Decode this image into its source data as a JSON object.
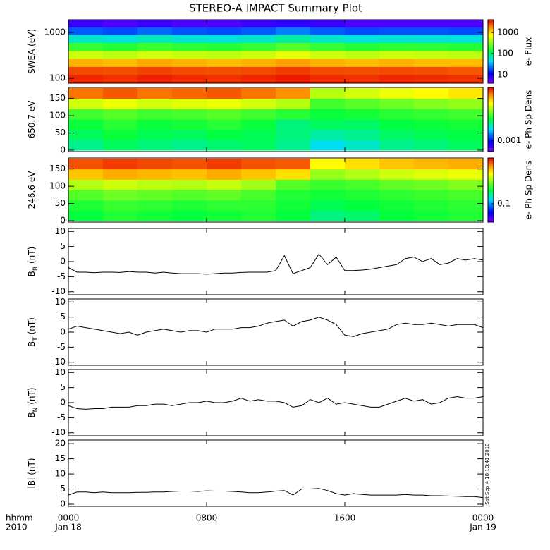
{
  "title": "STEREO-A IMPACT Summary Plot",
  "timestamp": "Sat Sep  4 18:18:41 2010",
  "x_axis": {
    "label": "hhmm",
    "label2": "2010",
    "xlim": [
      0,
      24
    ],
    "xticks": [
      {
        "value": 0,
        "label": "0000"
      },
      {
        "value": 8,
        "label": "0800"
      },
      {
        "value": 16,
        "label": "1600"
      },
      {
        "value": 24,
        "label": "0000"
      }
    ],
    "dates": [
      "Jan 18",
      null,
      null,
      "Jan 19"
    ],
    "time_bins": [
      0,
      2,
      4,
      6,
      8,
      10,
      12,
      14,
      16,
      18,
      20,
      22,
      24
    ],
    "x": [
      0,
      0.5,
      1,
      1.5,
      2,
      2.5,
      3,
      3.5,
      4,
      4.5,
      5,
      5.5,
      6,
      6.5,
      7,
      7.5,
      8,
      8.5,
      9,
      9.5,
      10,
      10.5,
      11,
      11.5,
      12,
      12.5,
      13,
      13.5,
      14,
      14.5,
      15,
      15.5,
      16,
      16.5,
      17,
      17.5,
      18,
      18.5,
      19,
      19.5,
      20,
      20.5,
      21,
      21.5,
      22,
      22.5,
      23,
      23.5,
      24
    ]
  },
  "chart_data": [
    {
      "type": "heatmap",
      "ylabel": "SWEA (eV)",
      "ylog": true,
      "ylim": [
        78,
        1890
      ],
      "yticks": [
        100,
        1000
      ],
      "bins": [
        78,
        120,
        180,
        270,
        400,
        600,
        900,
        1300,
        1890
      ],
      "colorbar": {
        "label": "e- Flux",
        "log": true,
        "clim": [
          4,
          4000
        ],
        "ticks": [
          10,
          100,
          1000
        ]
      },
      "values": [
        [
          3200,
          3000,
          3300,
          3100,
          3000,
          3200,
          3400,
          3100,
          3000,
          3200,
          3100,
          3000
        ],
        [
          2600,
          2500,
          2700,
          2600,
          2500,
          2600,
          2800,
          2600,
          2500,
          2600,
          2500,
          2400
        ],
        [
          1300,
          1200,
          1400,
          1300,
          1200,
          1300,
          1500,
          1300,
          1200,
          1300,
          1200,
          1200
        ],
        [
          500,
          450,
          520,
          480,
          450,
          500,
          600,
          500,
          450,
          500,
          480,
          450
        ],
        [
          180,
          160,
          190,
          170,
          160,
          180,
          220,
          180,
          160,
          170,
          170,
          160
        ],
        [
          60,
          55,
          65,
          58,
          55,
          60,
          75,
          60,
          55,
          58,
          56,
          55
        ],
        [
          20,
          18,
          22,
          19,
          18,
          20,
          25,
          20,
          18,
          19,
          19,
          18
        ],
        [
          7,
          6,
          7,
          6,
          6,
          7,
          8,
          7,
          6,
          6,
          6,
          6
        ]
      ]
    },
    {
      "type": "heatmap",
      "ylabel": "650.7 eV",
      "ylim": [
        -4,
        182
      ],
      "yticks": [
        0,
        50,
        100,
        150
      ],
      "bins": [
        0,
        30,
        60,
        90,
        120,
        150,
        180
      ],
      "colorbar": {
        "label": "e- Ph Sp Dens",
        "log": true,
        "clim": [
          0.0005,
          0.03
        ],
        "ticks": [
          0.001
        ]
      },
      "values": [
        [
          0.003,
          0.0035,
          0.0032,
          0.003,
          0.0033,
          0.0035,
          0.003,
          0.0022,
          0.0025,
          0.003,
          0.0032,
          0.0035
        ],
        [
          0.0035,
          0.004,
          0.0036,
          0.0035,
          0.0038,
          0.0036,
          0.0032,
          0.0028,
          0.003,
          0.0034,
          0.0036,
          0.0038
        ],
        [
          0.004,
          0.0045,
          0.004,
          0.0042,
          0.0045,
          0.004,
          0.0032,
          0.0035,
          0.0034,
          0.0038,
          0.004,
          0.0042
        ],
        [
          0.005,
          0.0055,
          0.005,
          0.0052,
          0.0055,
          0.005,
          0.0045,
          0.004,
          0.0042,
          0.0045,
          0.0048,
          0.005
        ],
        [
          0.009,
          0.01,
          0.009,
          0.0095,
          0.01,
          0.009,
          0.008,
          0.005,
          0.0055,
          0.006,
          0.0065,
          0.007
        ],
        [
          0.02,
          0.022,
          0.02,
          0.021,
          0.022,
          0.02,
          0.018,
          0.008,
          0.009,
          0.01,
          0.011,
          0.012
        ]
      ]
    },
    {
      "type": "heatmap",
      "ylabel": "246.6 eV",
      "ylim": [
        -4,
        182
      ],
      "yticks": [
        0,
        50,
        100,
        150
      ],
      "bins": [
        0,
        30,
        60,
        90,
        120,
        150,
        180
      ],
      "colorbar": {
        "label": "e- Ph Sp Dens",
        "log": true,
        "clim": [
          0.04,
          1
        ],
        "ticks": [
          0.1
        ]
      },
      "values": [
        [
          0.2,
          0.22,
          0.21,
          0.2,
          0.21,
          0.22,
          0.2,
          0.17,
          0.18,
          0.2,
          0.21,
          0.22
        ],
        [
          0.22,
          0.24,
          0.23,
          0.22,
          0.23,
          0.23,
          0.21,
          0.19,
          0.2,
          0.21,
          0.22,
          0.23
        ],
        [
          0.26,
          0.28,
          0.27,
          0.26,
          0.27,
          0.25,
          0.22,
          0.21,
          0.22,
          0.23,
          0.24,
          0.25
        ],
        [
          0.35,
          0.38,
          0.36,
          0.35,
          0.37,
          0.33,
          0.26,
          0.24,
          0.25,
          0.27,
          0.28,
          0.3
        ],
        [
          0.55,
          0.6,
          0.58,
          0.56,
          0.6,
          0.55,
          0.5,
          0.32,
          0.35,
          0.38,
          0.4,
          0.42
        ],
        [
          0.8,
          0.85,
          0.82,
          0.8,
          0.85,
          0.8,
          0.78,
          0.45,
          0.5,
          0.55,
          0.58,
          0.6
        ]
      ]
    },
    {
      "type": "line",
      "ylabel": "B",
      "ylabel_sub": "R",
      "ylabel_unit": "(nT)",
      "ylim": [
        -11,
        11
      ],
      "yticks": [
        -10,
        -5,
        0,
        5,
        10
      ],
      "color": "#000000",
      "values": [
        -2,
        -3.5,
        -3.5,
        -3.7,
        -3.5,
        -3.5,
        -3.6,
        -3.3,
        -3.5,
        -3.5,
        -3.8,
        -3.5,
        -3.8,
        -4,
        -4,
        -4,
        -4.2,
        -4,
        -3.8,
        -3.8,
        -3.6,
        -3.5,
        -3.5,
        -3.5,
        -3,
        2,
        -4,
        -3,
        -2,
        2.5,
        -1,
        1.5,
        -3,
        -3,
        -2.8,
        -2.5,
        -2,
        -1.5,
        -1,
        1,
        1.5,
        0,
        1,
        -1,
        -0.5,
        1,
        0.5,
        1,
        0.5
      ]
    },
    {
      "type": "line",
      "ylabel": "B",
      "ylabel_sub": "T",
      "ylabel_unit": "(nT)",
      "ylim": [
        -11,
        11
      ],
      "yticks": [
        -10,
        -5,
        0,
        5,
        10
      ],
      "color": "#000000",
      "values": [
        1,
        2,
        1.5,
        1,
        0.5,
        0,
        -0.5,
        0,
        -1,
        0,
        0.5,
        1,
        0.5,
        0,
        0.5,
        0.5,
        0,
        1,
        1,
        1,
        1.5,
        1.5,
        2,
        3,
        3.5,
        4,
        2,
        3.5,
        4,
        5,
        4,
        2.5,
        -1,
        -1.5,
        -0.5,
        0,
        0.5,
        1,
        2.5,
        3,
        2.5,
        2.5,
        3,
        2.5,
        2,
        2.5,
        2.5,
        2.5,
        1.5
      ]
    },
    {
      "type": "line",
      "ylabel": "B",
      "ylabel_sub": "N",
      "ylabel_unit": "(nT)",
      "ylim": [
        -11,
        11
      ],
      "yticks": [
        -10,
        -5,
        0,
        5,
        10
      ],
      "color": "#000000",
      "values": [
        -1,
        -2,
        -2.2,
        -2,
        -2,
        -1.5,
        -1.5,
        -1.5,
        -1,
        -1,
        -0.5,
        -0.5,
        -1,
        -0.5,
        0,
        0,
        0.5,
        0,
        0,
        0.5,
        1.5,
        0.5,
        1,
        0.5,
        0.5,
        0,
        -1.5,
        -1,
        1,
        0,
        1.5,
        -0.5,
        0,
        -0.5,
        -1,
        -1.5,
        -1.5,
        -0.5,
        0.5,
        1.5,
        0.5,
        1,
        -0.5,
        0,
        1.5,
        2,
        1.5,
        1.5,
        2
      ]
    },
    {
      "type": "line",
      "ylabel": "lBl (nT)",
      "ylim": [
        -0.7,
        21.2
      ],
      "yticks": [
        0,
        5,
        10,
        15,
        20
      ],
      "color": "#000000",
      "values": [
        3,
        4,
        4,
        3.8,
        4,
        3.8,
        3.8,
        3.8,
        3.9,
        3.9,
        4,
        4,
        4.2,
        4.3,
        4.3,
        4.2,
        4.4,
        4.3,
        4.3,
        4.2,
        4,
        3.8,
        3.8,
        4,
        4.3,
        4.5,
        3,
        5,
        5,
        5.2,
        4.5,
        3.5,
        3,
        3.5,
        3.2,
        3,
        3,
        3,
        3,
        3.2,
        3,
        3,
        2.8,
        2.8,
        2.7,
        2.6,
        2.5,
        2.5,
        2.2
      ]
    }
  ]
}
